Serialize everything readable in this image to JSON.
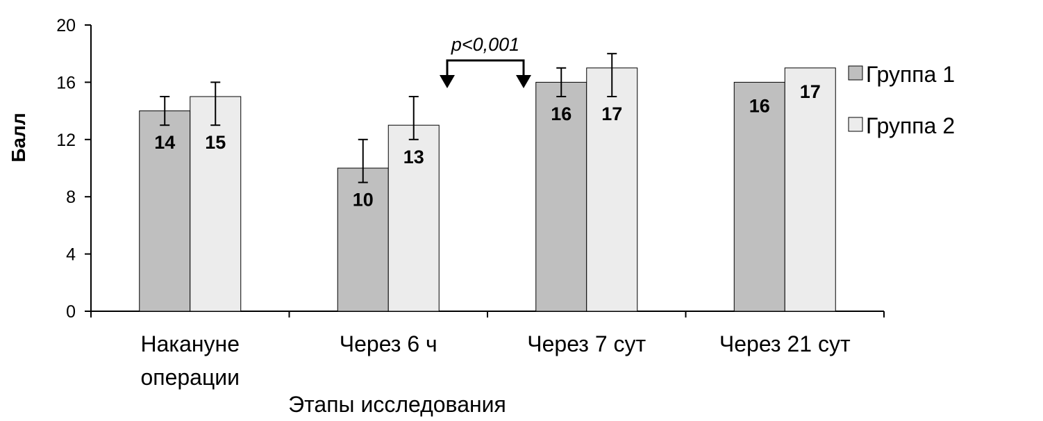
{
  "chart_data": {
    "type": "bar",
    "title": "",
    "xlabel": "Этапы исследования",
    "ylabel": "Балл",
    "ylim": [
      0,
      20
    ],
    "yticks": [
      0,
      4,
      8,
      12,
      16,
      20
    ],
    "grid": false,
    "legend_position": "right",
    "categories": [
      [
        "Накануне",
        "операции"
      ],
      [
        "Через 6 ч"
      ],
      [
        "Через 7 сут"
      ],
      [
        "Через 21 сут"
      ]
    ],
    "series": [
      {
        "name": "Группа 1",
        "color": "#bfbfbf",
        "values": [
          14,
          10,
          16,
          16
        ],
        "error_low": [
          13,
          9,
          15,
          null
        ],
        "error_high": [
          15,
          12,
          17,
          null
        ]
      },
      {
        "name": "Группа 2",
        "color": "#ececec",
        "values": [
          15,
          13,
          17,
          17
        ],
        "error_low": [
          13,
          12,
          15,
          null
        ],
        "error_high": [
          16,
          15,
          18,
          null
        ]
      }
    ],
    "annotations": [
      {
        "text": "p<0,001",
        "from_category": 1,
        "to_category": 2
      }
    ]
  }
}
